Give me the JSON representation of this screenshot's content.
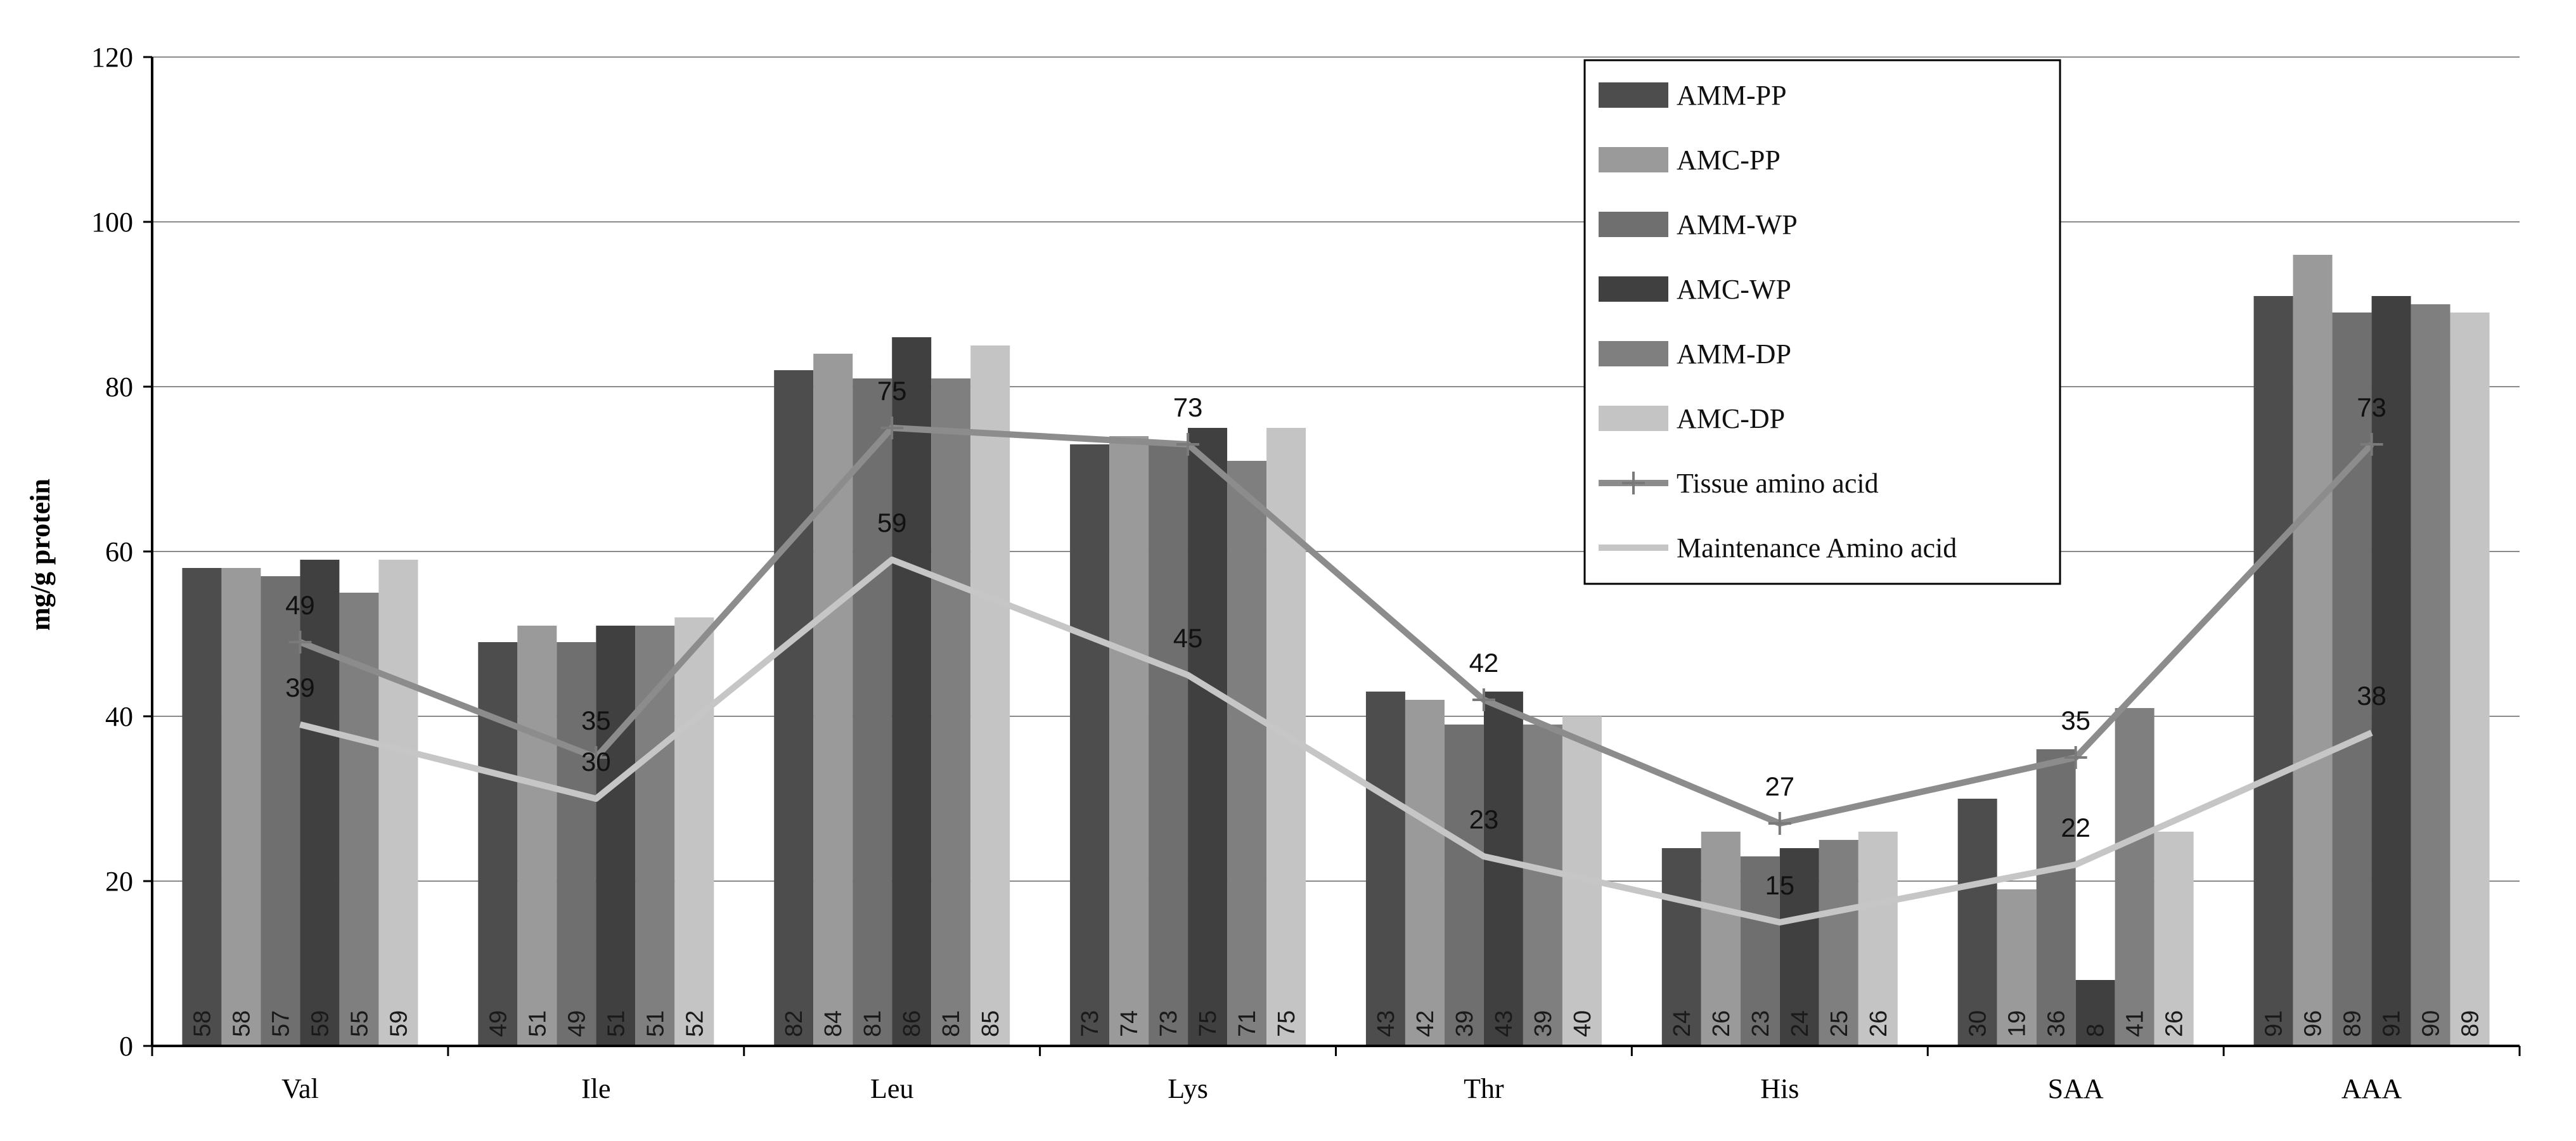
{
  "chart_data": {
    "type": "bar",
    "title": "",
    "xlabel": "",
    "ylabel": "mg/g protein",
    "ylim": [
      0,
      120
    ],
    "yticks": [
      0,
      20,
      40,
      60,
      80,
      100,
      120
    ],
    "grid": true,
    "legend_position": "top-right",
    "categories": [
      "Val",
      "Ile",
      "Leu",
      "Lys",
      "Thr",
      "His",
      "SAA",
      "AAA"
    ],
    "series": [
      {
        "name": "AMM-PP",
        "kind": "bar",
        "color": "#4d4d4d",
        "values": [
          58,
          49,
          82,
          73,
          43,
          24,
          30,
          91
        ]
      },
      {
        "name": "AMC-PP",
        "kind": "bar",
        "color": "#9a9a9a",
        "values": [
          58,
          51,
          84,
          74,
          42,
          26,
          19,
          96
        ]
      },
      {
        "name": "AMM-WP",
        "kind": "bar",
        "color": "#6f6f6f",
        "values": [
          57,
          49,
          81,
          73,
          39,
          23,
          36,
          89
        ]
      },
      {
        "name": "AMC-WP",
        "kind": "bar",
        "color": "#404040",
        "values": [
          59,
          51,
          86,
          75,
          43,
          24,
          8,
          91
        ]
      },
      {
        "name": "AMM-DP",
        "kind": "bar",
        "color": "#7f7f7f",
        "values": [
          55,
          51,
          81,
          71,
          39,
          25,
          41,
          90
        ]
      },
      {
        "name": "AMC-DP",
        "kind": "bar",
        "color": "#c4c4c4",
        "values": [
          59,
          52,
          85,
          75,
          40,
          26,
          26,
          89
        ]
      },
      {
        "name": "Tissue amino acid",
        "kind": "line",
        "color": "#8c8c8c",
        "marker": "+",
        "values": [
          49,
          35,
          75,
          73,
          42,
          27,
          35,
          73
        ]
      },
      {
        "name": "Maintenance Amino acid",
        "kind": "line",
        "color": "#c6c6c6",
        "marker": "none",
        "values": [
          39,
          30,
          59,
          45,
          23,
          15,
          22,
          38
        ]
      }
    ]
  }
}
